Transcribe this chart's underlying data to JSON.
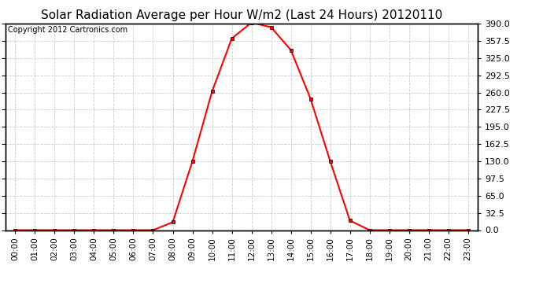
{
  "title": "Solar Radiation Average per Hour W/m2 (Last 24 Hours) 20120110",
  "copyright_text": "Copyright 2012 Cartronics.com",
  "x_labels": [
    "00:00",
    "01:00",
    "02:00",
    "03:00",
    "04:00",
    "05:00",
    "06:00",
    "07:00",
    "08:00",
    "09:00",
    "10:00",
    "11:00",
    "12:00",
    "13:00",
    "14:00",
    "15:00",
    "16:00",
    "17:00",
    "18:00",
    "19:00",
    "20:00",
    "21:00",
    "22:00",
    "23:00"
  ],
  "y_values": [
    0,
    0,
    0,
    0,
    0,
    0,
    0,
    0,
    15,
    130,
    262,
    362,
    392,
    383,
    340,
    248,
    130,
    18,
    0,
    0,
    0,
    0,
    0,
    0
  ],
  "ylim": [
    0,
    390
  ],
  "yticks": [
    0.0,
    32.5,
    65.0,
    97.5,
    130.0,
    162.5,
    195.0,
    227.5,
    260.0,
    292.5,
    325.0,
    357.5,
    390.0
  ],
  "line_color": "red",
  "marker": "s",
  "marker_size": 3,
  "grid_color": "#cccccc",
  "background_color": "white",
  "plot_bg_color": "white",
  "title_fontsize": 11,
  "copyright_fontsize": 7,
  "tick_fontsize": 7.5,
  "ylabel_right_fontsize": 8
}
